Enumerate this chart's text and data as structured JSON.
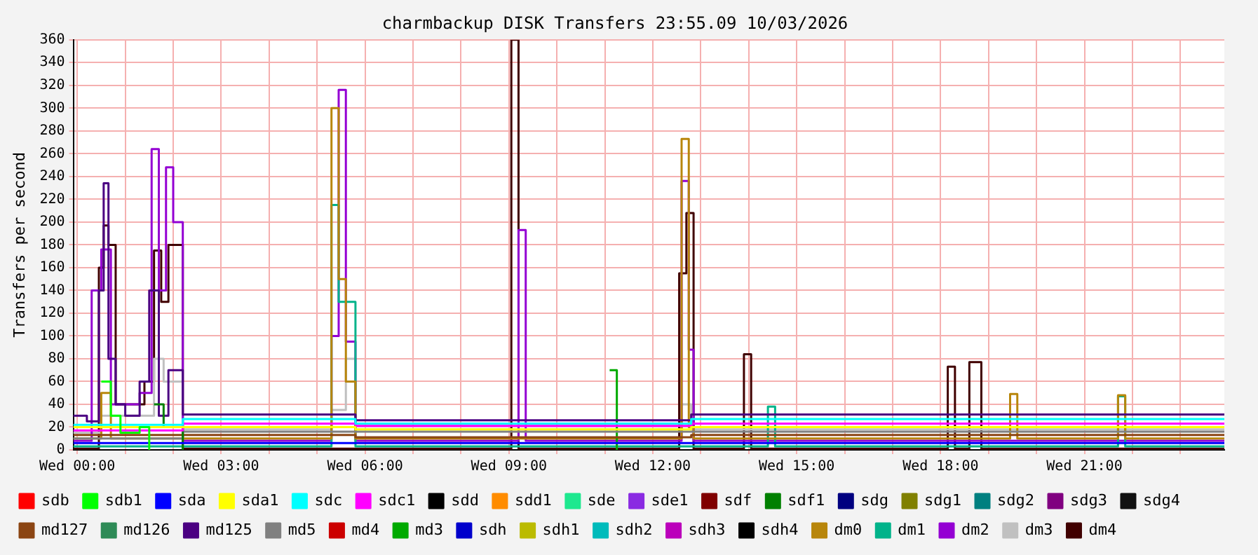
{
  "chart_data": {
    "type": "step",
    "title": "charmbackup DISK Transfers 23:55.09 10/03/2026",
    "ylabel": "Transfers per second",
    "xlim": [
      "2026-03-10T23:55",
      "2026-03-11T23:55"
    ],
    "ylim": [
      0,
      360
    ],
    "xticks": [
      {
        "value": "2026-03-11T00:00",
        "label": "Wed 00:00"
      },
      {
        "value": "2026-03-11T01:00",
        "label": null
      },
      {
        "value": "2026-03-11T02:00",
        "label": null
      },
      {
        "value": "2026-03-11T03:00",
        "label": "Wed 03:00"
      },
      {
        "value": "2026-03-11T04:00",
        "label": null
      },
      {
        "value": "2026-03-11T05:00",
        "label": null
      },
      {
        "value": "2026-03-11T06:00",
        "label": "Wed 06:00"
      },
      {
        "value": "2026-03-11T07:00",
        "label": null
      },
      {
        "value": "2026-03-11T08:00",
        "label": null
      },
      {
        "value": "2026-03-11T09:00",
        "label": "Wed 09:00"
      },
      {
        "value": "2026-03-11T10:00",
        "label": null
      },
      {
        "value": "2026-03-11T11:00",
        "label": null
      },
      {
        "value": "2026-03-11T12:00",
        "label": "Wed 12:00"
      },
      {
        "value": "2026-03-11T13:00",
        "label": null
      },
      {
        "value": "2026-03-11T14:00",
        "label": null
      },
      {
        "value": "2026-03-11T15:00",
        "label": "Wed 15:00"
      },
      {
        "value": "2026-03-11T16:00",
        "label": null
      },
      {
        "value": "2026-03-11T17:00",
        "label": null
      },
      {
        "value": "2026-03-11T18:00",
        "label": "Wed 18:00"
      },
      {
        "value": "2026-03-11T19:00",
        "label": null
      },
      {
        "value": "2026-03-11T20:00",
        "label": null
      },
      {
        "value": "2026-03-11T21:00",
        "label": "Wed 21:00"
      },
      {
        "value": "2026-03-11T22:00",
        "label": null
      },
      {
        "value": "2026-03-11T23:00",
        "label": null
      }
    ],
    "yticks": [
      0,
      20,
      40,
      60,
      80,
      100,
      120,
      140,
      160,
      180,
      200,
      220,
      240,
      260,
      280,
      300,
      320,
      340,
      360
    ],
    "grid": true,
    "legend": "bottom",
    "series": [
      {
        "name": "sdb",
        "color": "#ff0000"
      },
      {
        "name": "sdb1",
        "color": "#00ff00",
        "x": [
          "2026-03-11T00:30",
          "2026-03-11T00:42",
          "2026-03-11T00:54",
          "2026-03-11T01:18",
          "2026-03-11T01:30"
        ],
        "values": [
          60,
          30,
          15,
          20,
          0
        ]
      },
      {
        "name": "sda",
        "color": "#0000ff",
        "x": [
          "2026-03-10T23:55",
          "2026-03-11T02:12",
          "2026-03-11T05:48",
          "2026-03-11T12:48",
          "2026-03-11T23:55"
        ],
        "values": [
          6,
          6,
          6,
          6,
          6
        ]
      },
      {
        "name": "sda1",
        "color": "#ffff00",
        "x": [
          "2026-03-10T23:55",
          "2026-03-11T02:12",
          "2026-03-11T05:48",
          "2026-03-11T12:48",
          "2026-03-11T23:55"
        ],
        "values": [
          20,
          20,
          18,
          20,
          20
        ]
      },
      {
        "name": "sdc",
        "color": "#00ffff",
        "x": [
          "2026-03-10T23:55",
          "2026-03-11T02:12",
          "2026-03-11T05:48",
          "2026-03-11T12:48",
          "2026-03-11T23:55"
        ],
        "values": [
          22,
          27,
          23,
          27,
          27
        ]
      },
      {
        "name": "sdc1",
        "color": "#ff00ff",
        "x": [
          "2026-03-10T23:55",
          "2026-03-11T02:12",
          "2026-03-11T05:48",
          "2026-03-11T12:48",
          "2026-03-11T23:55"
        ],
        "values": [
          17,
          23,
          21,
          23,
          23
        ]
      },
      {
        "name": "sdd",
        "color": "#000000"
      },
      {
        "name": "sdd1",
        "color": "#ff8c00"
      },
      {
        "name": "sde",
        "color": "#1ee88f"
      },
      {
        "name": "sde1",
        "color": "#8a2be2"
      },
      {
        "name": "sdf",
        "color": "#800000"
      },
      {
        "name": "sdf1",
        "color": "#008000",
        "x": [
          "2026-03-11T01:36",
          "2026-03-11T01:48",
          "2026-03-11T02:12"
        ],
        "values": [
          40,
          20,
          0
        ]
      },
      {
        "name": "sdg",
        "color": "#000080"
      },
      {
        "name": "sdg1",
        "color": "#808000"
      },
      {
        "name": "sdg2",
        "color": "#008080"
      },
      {
        "name": "sdg3",
        "color": "#800080"
      },
      {
        "name": "sdg4",
        "color": "#111111"
      },
      {
        "name": "md127",
        "color": "#8b4513",
        "x": [
          "2026-03-10T23:55",
          "2026-03-11T02:12",
          "2026-03-11T05:48",
          "2026-03-11T12:48",
          "2026-03-11T23:55"
        ],
        "values": [
          13,
          13,
          11,
          13,
          13
        ]
      },
      {
        "name": "md126",
        "color": "#2e8b57"
      },
      {
        "name": "md125",
        "color": "#4b0082",
        "x": [
          "2026-03-10T23:55",
          "2026-03-11T00:12",
          "2026-03-11T00:27",
          "2026-03-11T00:33",
          "2026-03-11T00:39",
          "2026-03-11T00:48",
          "2026-03-11T01:00",
          "2026-03-11T01:18",
          "2026-03-11T01:30",
          "2026-03-11T01:42",
          "2026-03-11T01:54",
          "2026-03-11T02:12",
          "2026-03-11T05:48",
          "2026-03-11T12:48",
          "2026-03-11T23:55"
        ],
        "values": [
          30,
          25,
          140,
          234,
          80,
          40,
          30,
          60,
          140,
          30,
          70,
          31,
          26,
          31,
          31
        ]
      },
      {
        "name": "md5",
        "color": "#808080",
        "x": [
          "2026-03-10T23:55",
          "2026-03-11T02:12",
          "2026-03-11T05:48",
          "2026-03-11T12:48",
          "2026-03-11T23:55"
        ],
        "values": [
          10,
          16,
          16,
          16,
          16
        ]
      },
      {
        "name": "md4",
        "color": "#cc0000"
      },
      {
        "name": "md3",
        "color": "#00aa00",
        "x": [
          "2026-03-11T11:06",
          "2026-03-11T11:15"
        ],
        "values": [
          70,
          0
        ]
      },
      {
        "name": "sdh",
        "color": "#0000cc"
      },
      {
        "name": "sdh1",
        "color": "#bbbb00"
      },
      {
        "name": "sdh2",
        "color": "#00bbbb"
      },
      {
        "name": "sdh3",
        "color": "#bb00bb"
      },
      {
        "name": "sdh4",
        "color": "#000000"
      },
      {
        "name": "dm0",
        "color": "#b8860b",
        "x": [
          "2026-03-10T23:55",
          "2026-03-11T00:30",
          "2026-03-11T00:42",
          "2026-03-11T02:12",
          "2026-03-11T05:18",
          "2026-03-11T05:27",
          "2026-03-11T05:36",
          "2026-03-11T05:48",
          "2026-03-11T12:36",
          "2026-03-11T12:45",
          "2026-03-11T12:51",
          "2026-03-11T19:27",
          "2026-03-11T19:36",
          "2026-03-11T21:42",
          "2026-03-11T21:51",
          "2026-03-11T23:55"
        ],
        "values": [
          10,
          50,
          10,
          10,
          300,
          150,
          60,
          10,
          273,
          20,
          10,
          49,
          10,
          48,
          10,
          10
        ]
      },
      {
        "name": "dm1",
        "color": "#00b38a",
        "x": [
          "2026-03-10T23:55",
          "2026-03-11T05:18",
          "2026-03-11T05:27",
          "2026-03-11T05:48",
          "2026-03-11T14:24",
          "2026-03-11T14:33",
          "2026-03-11T21:42",
          "2026-03-11T21:51",
          "2026-03-11T23:55"
        ],
        "values": [
          3,
          215,
          130,
          3,
          38,
          3,
          47,
          3,
          3
        ]
      },
      {
        "name": "dm2",
        "color": "#9400d3",
        "x": [
          "2026-03-10T23:55",
          "2026-03-11T00:18",
          "2026-03-11T00:30",
          "2026-03-11T00:42",
          "2026-03-11T01:18",
          "2026-03-11T01:33",
          "2026-03-11T01:42",
          "2026-03-11T01:51",
          "2026-03-11T02:00",
          "2026-03-11T02:12",
          "2026-03-11T05:18",
          "2026-03-11T05:27",
          "2026-03-11T05:36",
          "2026-03-11T05:48",
          "2026-03-11T09:12",
          "2026-03-11T09:21",
          "2026-03-11T12:36",
          "2026-03-11T12:45",
          "2026-03-11T12:51",
          "2026-03-11T13:57",
          "2026-03-11T23:55"
        ],
        "values": [
          8,
          140,
          176,
          40,
          50,
          264,
          140,
          248,
          200,
          8,
          100,
          316,
          95,
          8,
          193,
          8,
          236,
          88,
          8,
          8,
          8
        ]
      },
      {
        "name": "dm3",
        "color": "#c0c0c0",
        "x": [
          "2026-03-10T23:55",
          "2026-03-11T00:30",
          "2026-03-11T01:36",
          "2026-03-11T01:48",
          "2026-03-11T02:12",
          "2026-03-11T05:18",
          "2026-03-11T05:36",
          "2026-03-11T05:48",
          "2026-03-11T12:36",
          "2026-03-11T12:48",
          "2026-03-11T23:55"
        ],
        "values": [
          15,
          30,
          80,
          60,
          18,
          35,
          80,
          18,
          40,
          18,
          18
        ]
      },
      {
        "name": "dm4",
        "color": "#400000",
        "x": [
          "2026-03-10T23:55",
          "2026-03-11T00:27",
          "2026-03-11T00:33",
          "2026-03-11T00:39",
          "2026-03-11T00:48",
          "2026-03-11T01:24",
          "2026-03-11T01:36",
          "2026-03-11T01:45",
          "2026-03-11T01:54",
          "2026-03-11T02:12",
          "2026-03-11T09:03",
          "2026-03-11T09:12",
          "2026-03-11T12:33",
          "2026-03-11T12:42",
          "2026-03-11T12:51",
          "2026-03-11T13:54",
          "2026-03-11T14:03",
          "2026-03-11T18:09",
          "2026-03-11T18:18",
          "2026-03-11T18:36",
          "2026-03-11T18:51",
          "2026-03-11T23:55"
        ],
        "values": [
          1,
          160,
          197,
          180,
          40,
          60,
          175,
          130,
          180,
          1,
          360,
          1,
          155,
          208,
          1,
          84,
          1,
          73,
          1,
          77,
          1,
          1
        ]
      }
    ]
  }
}
